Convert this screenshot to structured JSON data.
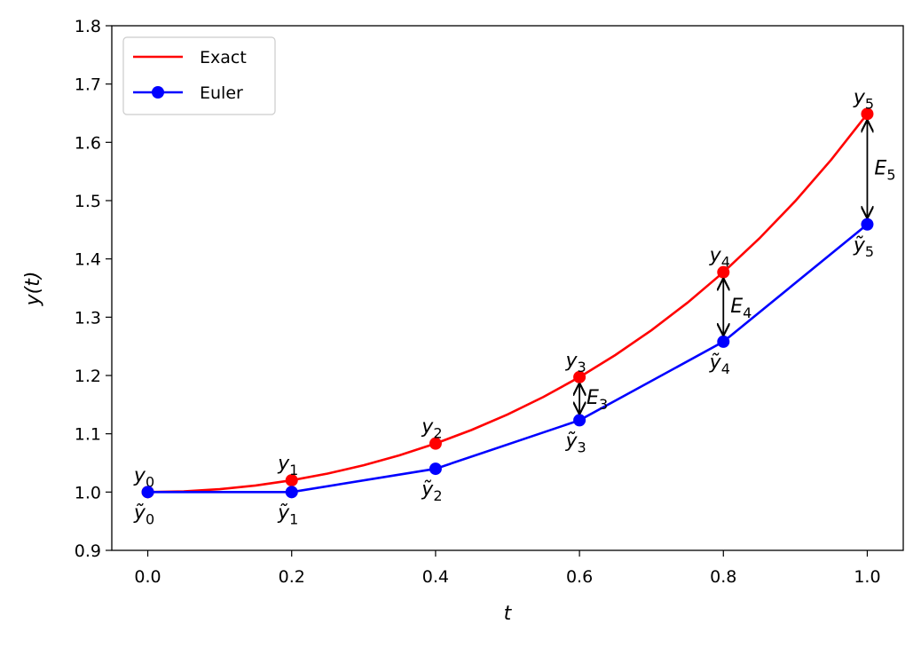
{
  "chart_data": {
    "type": "line",
    "xlabel": "t",
    "ylabel": "y(t)",
    "xlim": [
      -0.05,
      1.05
    ],
    "ylim": [
      0.9,
      1.8
    ],
    "xticks": [
      {
        "value": 0,
        "label": "0.0"
      },
      0.2,
      0.4,
      0.6,
      0.8,
      {
        "value": 1,
        "label": "1.0"
      }
    ],
    "yticks": [
      0.9,
      {
        "value": 1,
        "label": "1.0"
      },
      1.1,
      1.2,
      1.3,
      1.4,
      1.5,
      1.6,
      1.7,
      1.8
    ],
    "legend": "upper left",
    "series": [
      {
        "name": "Exact",
        "color": "#ff0000",
        "marker": "none",
        "x": [
          0,
          0.05,
          0.1,
          0.15,
          0.2,
          0.25,
          0.3,
          0.35,
          0.4,
          0.45,
          0.5,
          0.55,
          0.6,
          0.65,
          0.7,
          0.75,
          0.8,
          0.85,
          0.9,
          0.95,
          1
        ],
        "values": [
          1,
          1.00125,
          1.00501,
          1.01131,
          1.0202,
          1.03174,
          1.04603,
          1.06316,
          1.08329,
          1.10655,
          1.13315,
          1.16329,
          1.19722,
          1.23524,
          1.27762,
          1.32478,
          1.37713,
          1.43512,
          1.4993,
          1.57028,
          1.64872
        ],
        "marker_x": [
          0,
          0.2,
          0.4,
          0.6,
          0.8,
          1
        ],
        "marker_values": [
          1,
          1.0202,
          1.08329,
          1.19722,
          1.37713,
          1.64872
        ],
        "labels": [
          {
            "base": "y",
            "sub": "0"
          },
          {
            "base": "y",
            "sub": "1"
          },
          {
            "base": "y",
            "sub": "2"
          },
          {
            "base": "y",
            "sub": "3"
          },
          {
            "base": "y",
            "sub": "4"
          },
          {
            "base": "y",
            "sub": "5"
          }
        ]
      },
      {
        "name": "Euler",
        "color": "#0000ff",
        "marker": "o",
        "x": [
          0,
          0.2,
          0.4,
          0.6,
          0.8,
          1
        ],
        "values": [
          1,
          1,
          1.04,
          1.1232,
          1.25798,
          1.45926
        ],
        "labels": [
          {
            "base": "ỹ",
            "sub": "0"
          },
          {
            "base": "ỹ",
            "sub": "1"
          },
          {
            "base": "ỹ",
            "sub": "2"
          },
          {
            "base": "ỹ",
            "sub": "3"
          },
          {
            "base": "ỹ",
            "sub": "4"
          },
          {
            "base": "ỹ",
            "sub": "5"
          }
        ]
      }
    ],
    "error_labels": [
      null,
      null,
      null,
      {
        "base": "E",
        "sub": "3"
      },
      {
        "base": "E",
        "sub": "4"
      },
      {
        "base": "E",
        "sub": "5"
      }
    ]
  }
}
